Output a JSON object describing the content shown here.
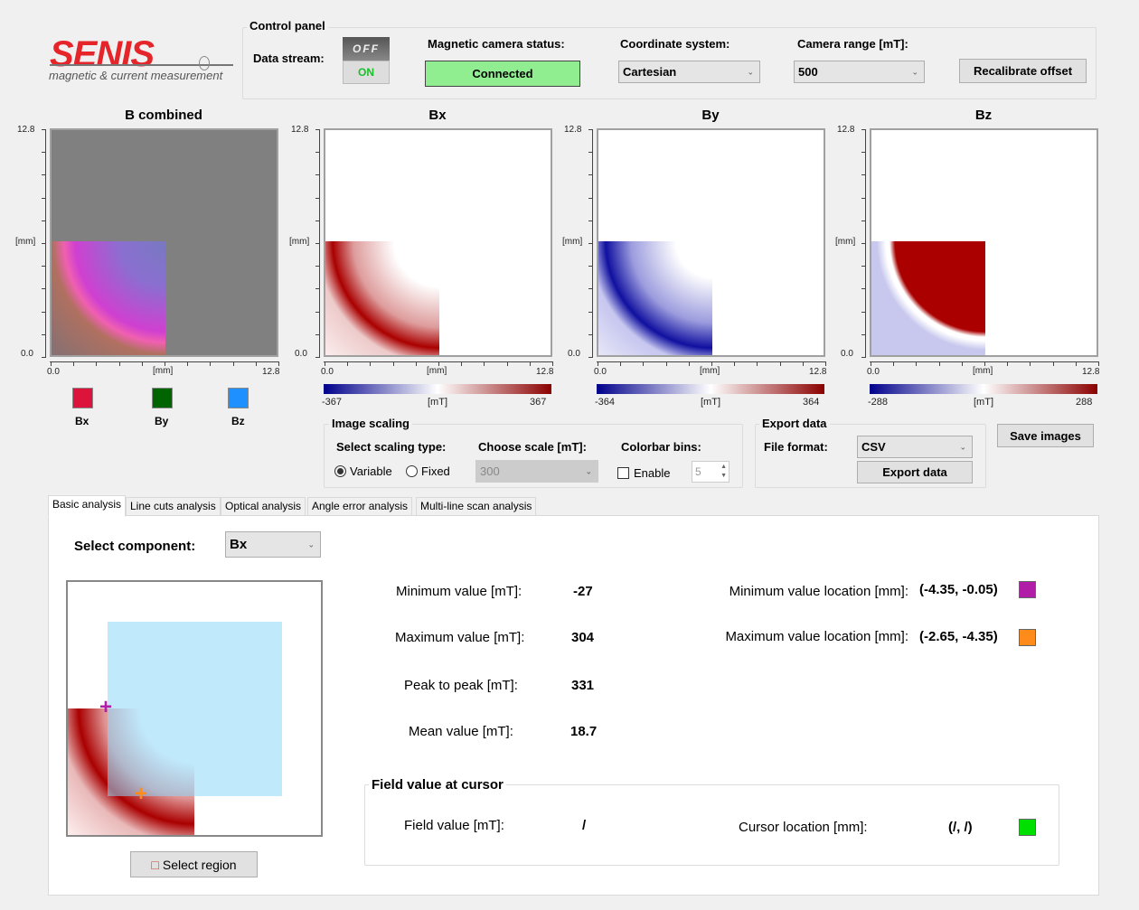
{
  "logo": {
    "brand": "SENIS",
    "tagline": "magnetic & current measurement",
    "color": "#e5252a"
  },
  "control_panel": {
    "title": "Control panel",
    "data_stream_label": "Data stream:",
    "toggle_off": "OFF",
    "toggle_on": "ON",
    "status_label": "Magnetic camera status:",
    "status_value": "Connected",
    "status_color": "#90ee90",
    "coord_label": "Coordinate system:",
    "coord_value": "Cartesian",
    "range_label": "Camera range [mT]:",
    "range_value": "500",
    "recalibrate": "Recalibrate offset"
  },
  "plots": [
    {
      "title": "B combined",
      "y_top": "12.8",
      "y_mid": "[mm]",
      "y_bot": "0.0",
      "x_left": "0.0",
      "x_mid": "[mm]",
      "x_right": "12.8"
    },
    {
      "title": "Bx",
      "y_top": "12.8",
      "y_mid": "[mm]",
      "y_bot": "0.0",
      "x_left": "0.0",
      "x_mid": "[mm]",
      "x_right": "12.8",
      "cb_min": "-367",
      "cb_unit": "[mT]",
      "cb_max": "367"
    },
    {
      "title": "By",
      "y_top": "12.8",
      "y_mid": "[mm]",
      "y_bot": "0.0",
      "x_left": "0.0",
      "x_mid": "[mm]",
      "x_right": "12.8",
      "cb_min": "-364",
      "cb_unit": "[mT]",
      "cb_max": "364"
    },
    {
      "title": "Bz",
      "y_top": "12.8",
      "y_mid": "[mm]",
      "y_bot": "0.0",
      "x_left": "0.0",
      "x_mid": "[mm]",
      "x_right": "12.8",
      "cb_min": "-288",
      "cb_unit": "[mT]",
      "cb_max": "288"
    }
  ],
  "legend": [
    {
      "label": "Bx",
      "color": "#dc143c"
    },
    {
      "label": "By",
      "color": "#006400"
    },
    {
      "label": "Bz",
      "color": "#1e90ff"
    }
  ],
  "image_scaling": {
    "title": "Image scaling",
    "type_label": "Select scaling type:",
    "variable": "Variable",
    "fixed": "Fixed",
    "selected": "Variable",
    "scale_label": "Choose scale [mT]:",
    "scale_value": "300",
    "bins_label": "Colorbar bins:",
    "enable": "Enable",
    "enabled": false,
    "bins_value": "5"
  },
  "export": {
    "title": "Export data",
    "format_label": "File format:",
    "format_value": "CSV",
    "export_button": "Export data"
  },
  "save_images": "Save images",
  "tabs": [
    {
      "label": "Basic analysis",
      "active": true
    },
    {
      "label": "Line cuts analysis"
    },
    {
      "label": "Optical analysis"
    },
    {
      "label": "Angle error analysis"
    },
    {
      "label": "Multi-line scan analysis"
    }
  ],
  "basic": {
    "component_label": "Select component:",
    "component_value": "Bx",
    "select_region": "Select region",
    "min_label": "Minimum value [mT]:",
    "min_value": "-27",
    "max_label": "Maximum value [mT]:",
    "max_value": "304",
    "p2p_label": "Peak to peak [mT]:",
    "p2p_value": "331",
    "mean_label": "Mean value [mT]:",
    "mean_value": "18.7",
    "min_loc_label": "Minimum value location [mm]:",
    "min_loc_value": "(-4.35, -0.05)",
    "min_color": "#b01ea8",
    "max_loc_label": "Maximum value location [mm]:",
    "max_loc_value": "(-2.65, -4.35)",
    "max_color": "#ff8c1a",
    "cursor_title": "Field value at cursor",
    "field_label": "Field value [mT]:",
    "field_value": "/",
    "cursor_loc_label": "Cursor location [mm]:",
    "cursor_loc_value": "(/, /)",
    "cursor_color": "#00e000"
  }
}
